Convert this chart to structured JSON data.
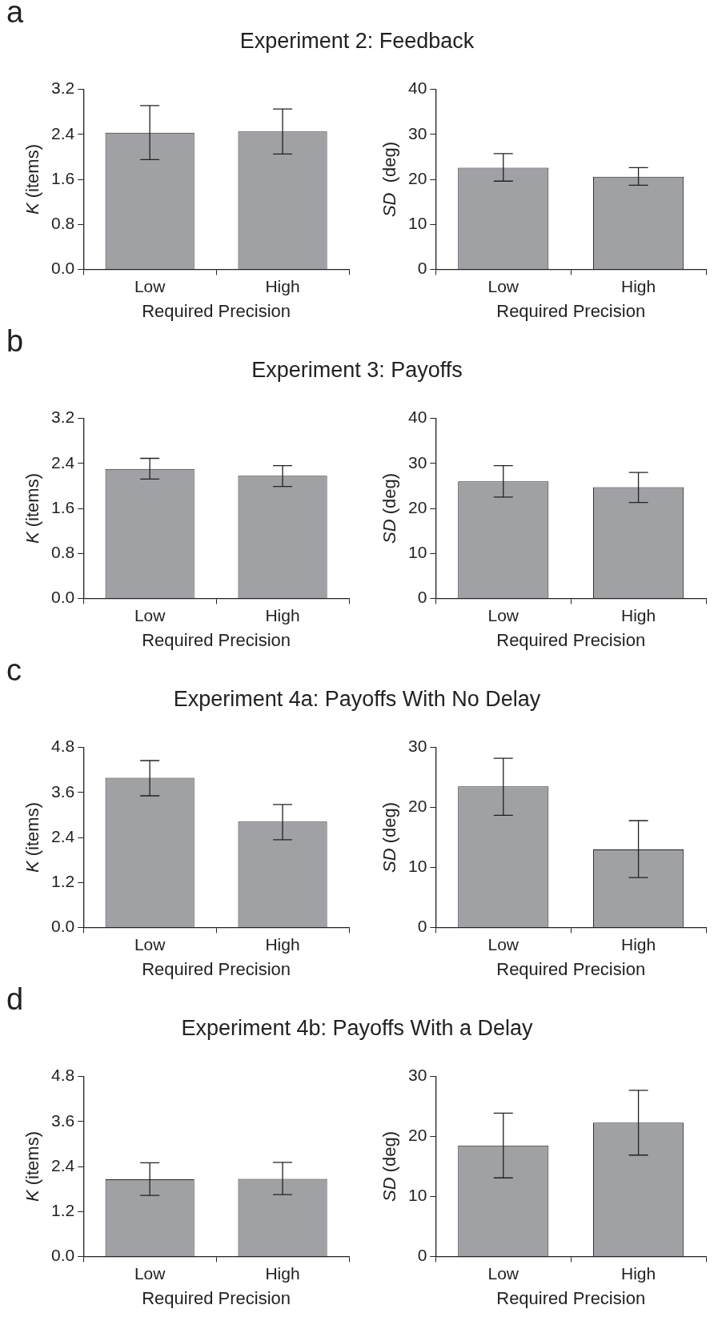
{
  "chart_data": [
    {
      "type": "bar",
      "title": "Experiment 2: Feedback",
      "annotations": [
        "a"
      ],
      "categories": [
        "Low",
        "High"
      ],
      "values": [
        2.43,
        2.45
      ],
      "errors": [
        [
          1.95,
          2.91
        ],
        [
          2.05,
          2.85
        ]
      ],
      "color": "#a0a1a5",
      "ylim": [
        0,
        3.2
      ],
      "yticks": [
        {
          "value": 0,
          "label": "0.0"
        },
        {
          "value": 0.8,
          "label": "0.8"
        },
        {
          "value": 1.6,
          "label": "1.6"
        },
        {
          "value": 2.4,
          "label": "2.4"
        },
        {
          "value": 3.2,
          "label": "3.2"
        }
      ],
      "xlabel": "Required Precision",
      "ylabel": "K (items)"
    },
    {
      "type": "bar",
      "categories": [
        "Low",
        "High"
      ],
      "values": [
        22.6,
        20.6
      ],
      "errors": [
        [
          19.6,
          25.7
        ],
        [
          18.7,
          22.6
        ]
      ],
      "color": "#a0a1a5",
      "ylim": [
        0,
        40
      ],
      "yticks": [
        0,
        10,
        20,
        30,
        40
      ],
      "xlabel": "Required Precision",
      "ylabel": "SD  (deg)"
    },
    {
      "type": "bar",
      "title": "Experiment 3: Payoffs",
      "annotations": [
        "b"
      ],
      "categories": [
        "Low",
        "High"
      ],
      "values": [
        2.3,
        2.18
      ],
      "errors": [
        [
          2.12,
          2.49
        ],
        [
          1.99,
          2.36
        ]
      ],
      "color": "#a0a1a5",
      "ylim": [
        0,
        3.2
      ],
      "yticks": [
        {
          "value": 0,
          "label": "0.0"
        },
        {
          "value": 0.8,
          "label": "0.8"
        },
        {
          "value": 1.6,
          "label": "1.6"
        },
        {
          "value": 2.4,
          "label": "2.4"
        },
        {
          "value": 3.2,
          "label": "3.2"
        }
      ],
      "xlabel": "Required Precision",
      "ylabel": "K (items)"
    },
    {
      "type": "bar",
      "categories": [
        "Low",
        "High"
      ],
      "values": [
        26.0,
        24.7
      ],
      "errors": [
        [
          22.5,
          29.5
        ],
        [
          21.3,
          28.0
        ]
      ],
      "color": "#a0a1a5",
      "ylim": [
        0,
        40
      ],
      "yticks": [
        0,
        10,
        20,
        30,
        40
      ],
      "xlabel": "Required Precision",
      "ylabel": "SD (deg)"
    },
    {
      "type": "bar",
      "title": "Experiment 4a: Payoffs With No Delay",
      "annotations": [
        "c"
      ],
      "categories": [
        "Low",
        "High"
      ],
      "values": [
        3.99,
        2.82
      ],
      "errors": [
        [
          3.51,
          4.45
        ],
        [
          2.34,
          3.28
        ]
      ],
      "color": "#a0a1a5",
      "ylim": [
        0,
        4.8
      ],
      "yticks": [
        {
          "value": 0,
          "label": "0.0"
        },
        {
          "value": 1.2,
          "label": "1.2"
        },
        {
          "value": 2.4,
          "label": "2.4"
        },
        {
          "value": 3.6,
          "label": "3.6"
        },
        {
          "value": 4.8,
          "label": "4.8"
        }
      ],
      "xlabel": "Required Precision",
      "ylabel": "K (items)"
    },
    {
      "type": "bar",
      "categories": [
        "Low",
        "High"
      ],
      "values": [
        23.5,
        13.0
      ],
      "errors": [
        [
          18.7,
          28.2
        ],
        [
          8.3,
          17.8
        ]
      ],
      "color": "#a0a1a5",
      "ylim": [
        0,
        30
      ],
      "yticks": [
        0,
        10,
        20,
        30
      ],
      "xlabel": "Required Precision",
      "ylabel": "SD (deg)"
    },
    {
      "type": "bar",
      "title": "Experiment 4b: Payoffs With a Delay",
      "annotations": [
        "d"
      ],
      "categories": [
        "Low",
        "High"
      ],
      "values": [
        2.06,
        2.07
      ],
      "errors": [
        [
          1.63,
          2.5
        ],
        [
          1.65,
          2.51
        ]
      ],
      "color": "#a0a1a5",
      "ylim": [
        0,
        4.8
      ],
      "yticks": [
        {
          "value": 0,
          "label": "0.0"
        },
        {
          "value": 1.2,
          "label": "1.2"
        },
        {
          "value": 2.4,
          "label": "2.4"
        },
        {
          "value": 3.6,
          "label": "3.6"
        },
        {
          "value": 4.8,
          "label": "4.8"
        }
      ],
      "xlabel": "Required Precision",
      "ylabel": "K (items)"
    },
    {
      "type": "bar",
      "categories": [
        "Low",
        "High"
      ],
      "values": [
        18.5,
        22.3
      ],
      "errors": [
        [
          13.1,
          23.9
        ],
        [
          16.9,
          27.7
        ]
      ],
      "color": "#a0a1a5",
      "ylim": [
        0,
        30
      ],
      "yticks": [
        0,
        10,
        20,
        30
      ],
      "xlabel": "Required Precision",
      "ylabel": "SD (deg)"
    }
  ]
}
